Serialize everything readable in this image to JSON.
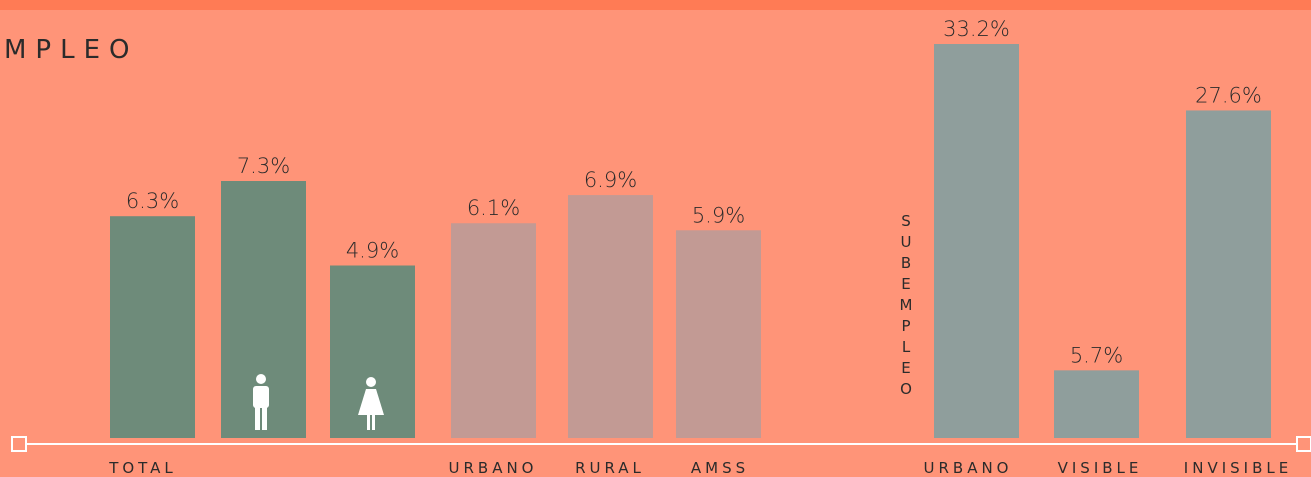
{
  "title": "MPLEO",
  "chart_data": [
    {
      "type": "bar",
      "categories": [
        "TOTAL",
        null,
        null,
        "URBANO",
        "RURAL",
        "AMSS"
      ],
      "values": [
        6.3,
        7.3,
        4.9,
        6.1,
        6.9,
        5.9
      ],
      "value_labels": [
        "6.3%",
        "7.3%",
        "4.9%",
        "6.1%",
        "6.9%",
        "5.9%"
      ],
      "colors": [
        "#6e8b7a",
        "#6e8b7a",
        "#6e8b7a",
        "#c29a94",
        "#c29a94",
        "#c29a94"
      ]
    },
    {
      "type": "bar",
      "label": "SUBEMPLEO",
      "categories": [
        "URBANO",
        "VISIBLE",
        "INVISIBLE"
      ],
      "values": [
        33.2,
        5.7,
        27.6
      ],
      "value_labels": [
        "33.2%",
        "5.7%",
        "27.6%"
      ],
      "colors": [
        "#8f9e9c",
        "#8f9e9c",
        "#8f9e9c"
      ]
    }
  ]
}
